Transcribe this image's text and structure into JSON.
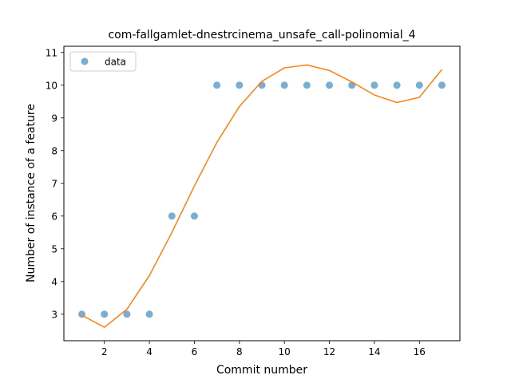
{
  "chart_data": {
    "type": "scatter",
    "title": "com-fallgamlet-dnestrcinema_unsafe_call-polinomial_4",
    "xlabel": "Commit number",
    "ylabel": "Number of instance of a feature",
    "xlim": [
      0.2,
      17.8
    ],
    "ylim": [
      2.19,
      11.19
    ],
    "xticks": [
      2,
      4,
      6,
      8,
      10,
      12,
      14,
      16
    ],
    "yticks": [
      3,
      4,
      5,
      6,
      7,
      8,
      9,
      10,
      11
    ],
    "grid": false,
    "legend_position": "upper-left",
    "series": [
      {
        "name": "data",
        "kind": "points",
        "color": "#1f77b4",
        "x": [
          1,
          2,
          3,
          4,
          5,
          6,
          7,
          8,
          9,
          10,
          11,
          12,
          13,
          14,
          15,
          16,
          17
        ],
        "y": [
          3,
          3,
          3,
          3,
          6,
          6,
          10,
          10,
          10,
          10,
          10,
          10,
          10,
          10,
          10,
          10,
          10
        ]
      },
      {
        "kind": "line",
        "color": "#ff7f0e",
        "x": [
          1,
          2,
          3,
          4,
          5,
          6,
          7,
          8,
          9,
          10,
          11,
          12,
          13,
          14,
          15,
          16,
          17
        ],
        "y": [
          2.97,
          2.6,
          3.15,
          4.18,
          5.5,
          6.92,
          8.25,
          9.35,
          10.12,
          10.53,
          10.62,
          10.45,
          10.1,
          9.7,
          9.47,
          9.63,
          10.48
        ]
      }
    ]
  }
}
